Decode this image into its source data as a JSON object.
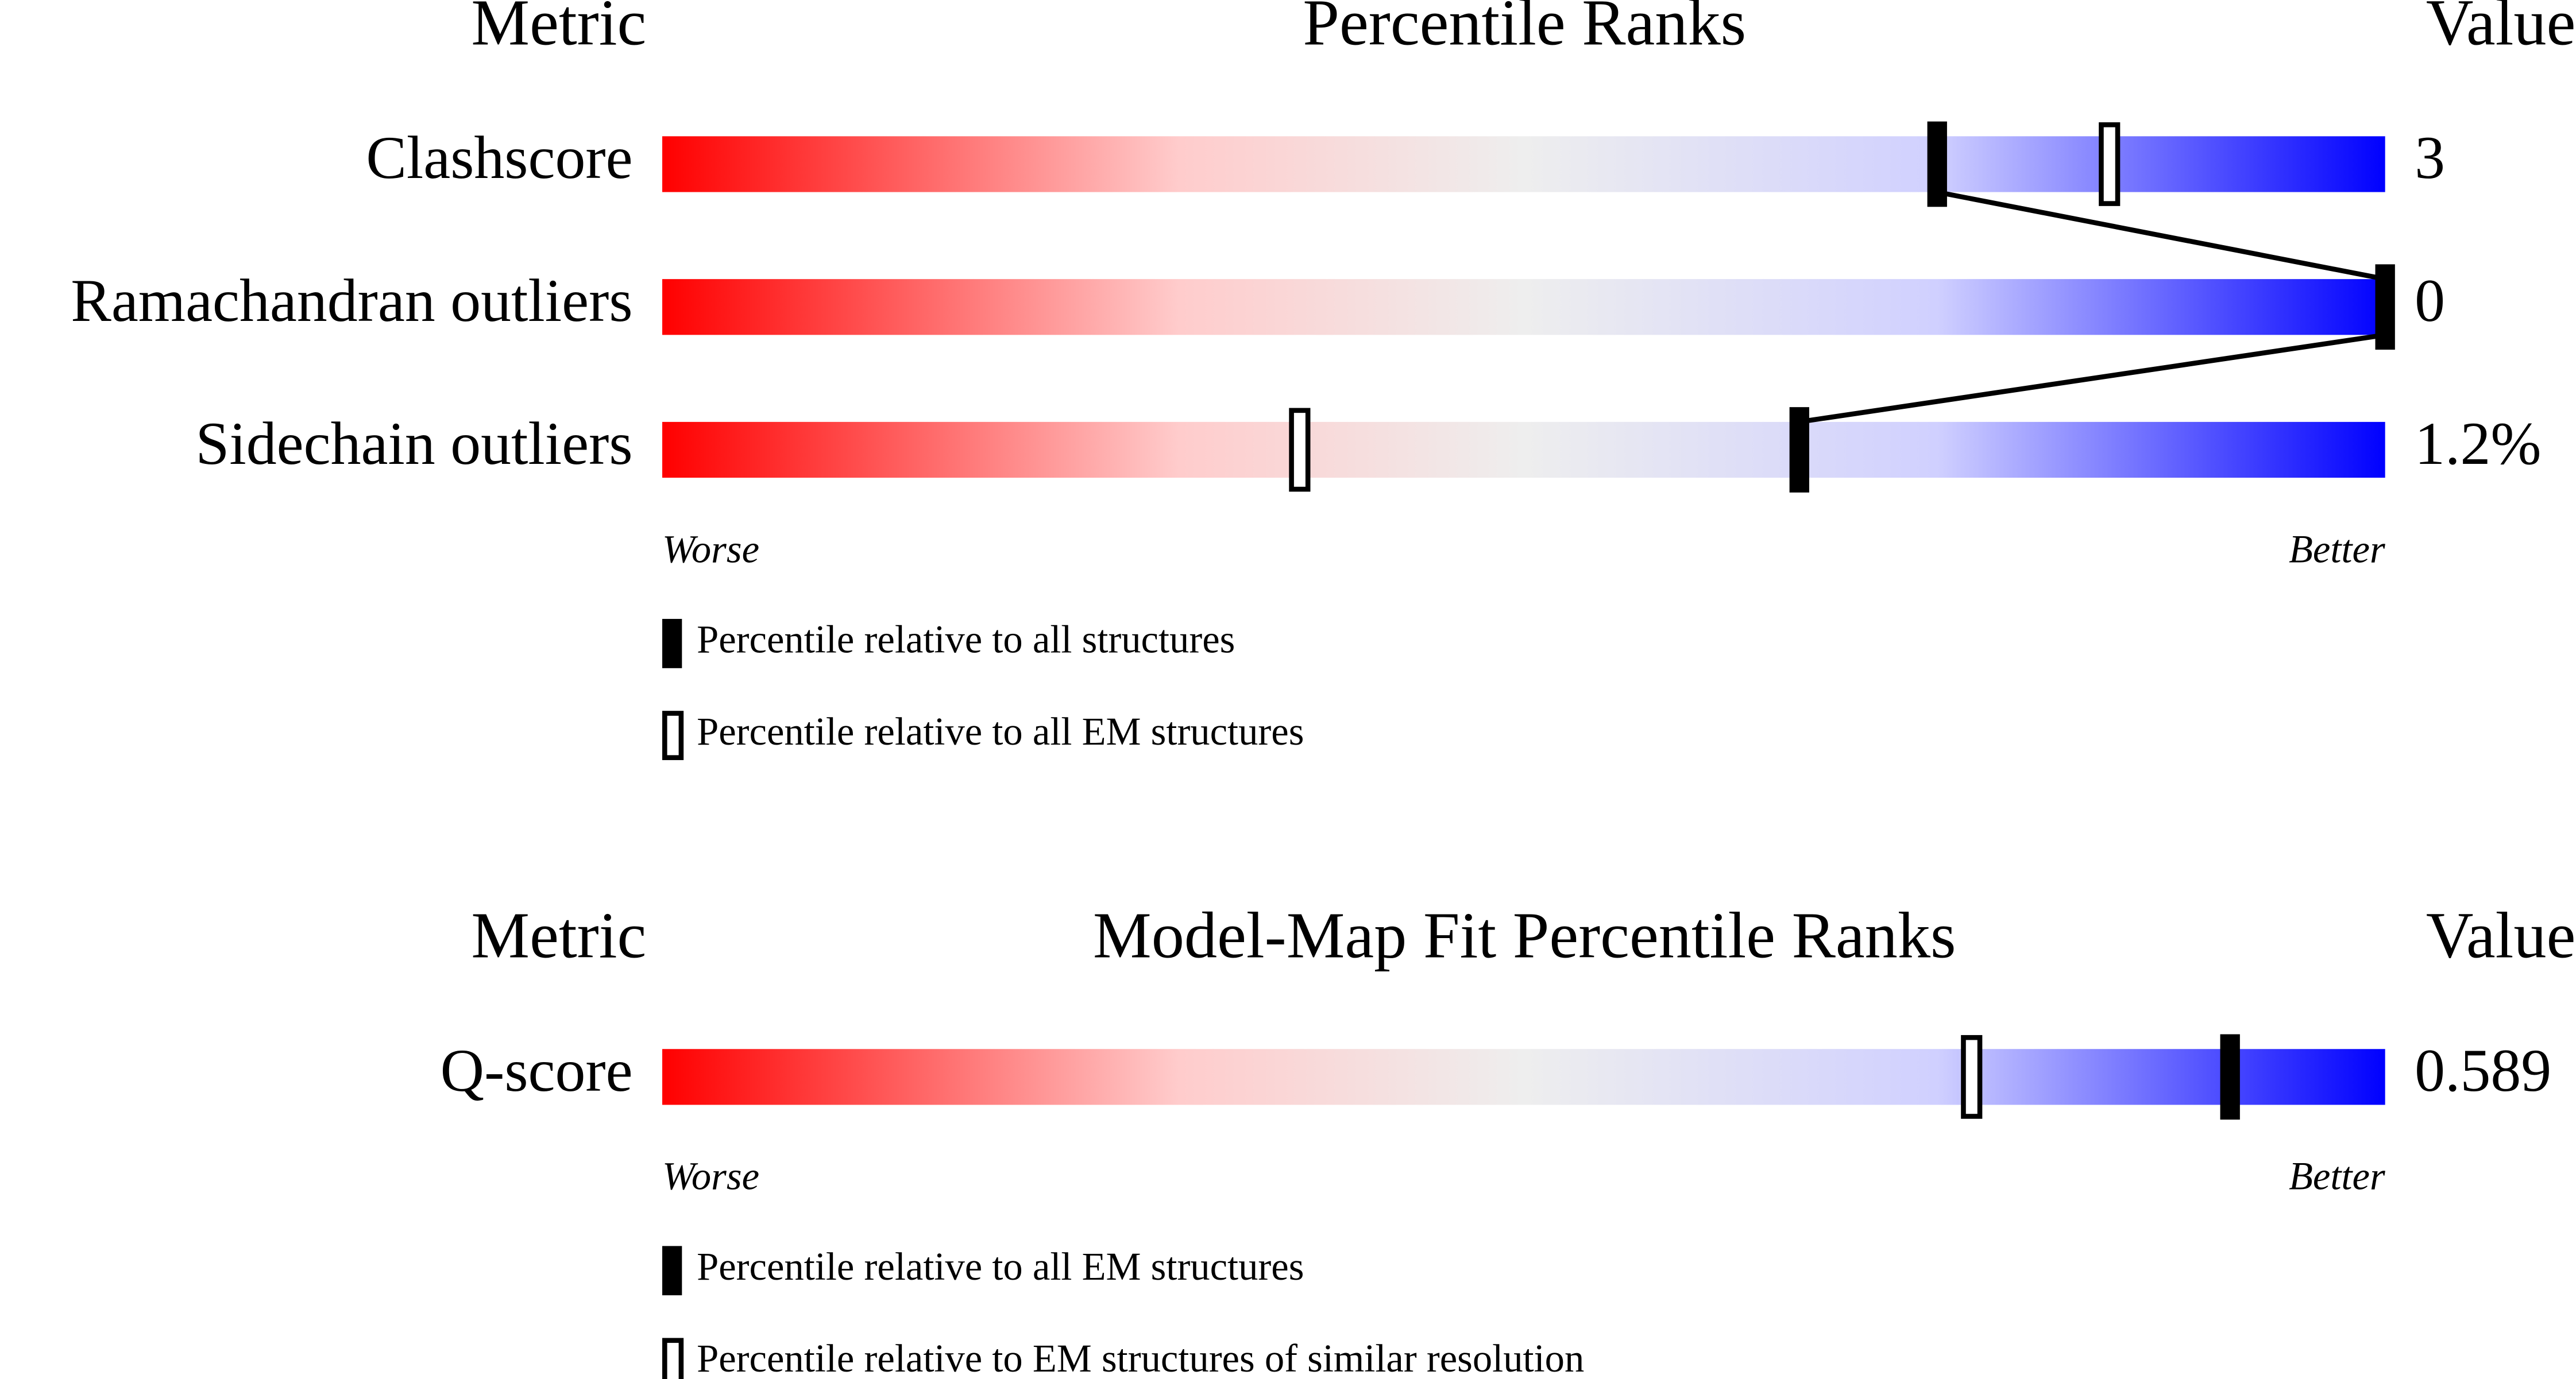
{
  "chart_data": [
    {
      "type": "percentile",
      "header": {
        "metric": "Metric",
        "title": "Percentile Ranks",
        "value": "Value"
      },
      "categories": [
        "Clashscore",
        "Ramachandran outliers",
        "Sidechain outliers"
      ],
      "metric_values": [
        "3",
        "0",
        "1.2%"
      ],
      "series": [
        {
          "name": "Percentile relative to all structures",
          "style": "filled",
          "color": "#000000",
          "values": [
            74,
            100,
            66
          ]
        },
        {
          "name": "Percentile relative to all EM structures",
          "style": "open",
          "color": "#000000",
          "values": [
            84,
            null,
            37
          ]
        }
      ],
      "xlim": [
        0,
        100
      ],
      "low_label": "Worse",
      "high_label": "Better",
      "connect_series": 0
    },
    {
      "type": "percentile",
      "header": {
        "metric": "Metric",
        "title": "Model-Map Fit Percentile Ranks",
        "value": "Value"
      },
      "categories": [
        "Q-score"
      ],
      "metric_values": [
        "0.589"
      ],
      "series": [
        {
          "name": "Percentile relative to all EM structures",
          "style": "filled",
          "color": "#000000",
          "values": [
            91
          ]
        },
        {
          "name": "Percentile relative to EM structures of similar resolution",
          "style": "open",
          "color": "#000000",
          "values": [
            76
          ]
        }
      ],
      "xlim": [
        0,
        100
      ],
      "low_label": "Worse",
      "high_label": "Better",
      "connect_series": 0
    }
  ]
}
